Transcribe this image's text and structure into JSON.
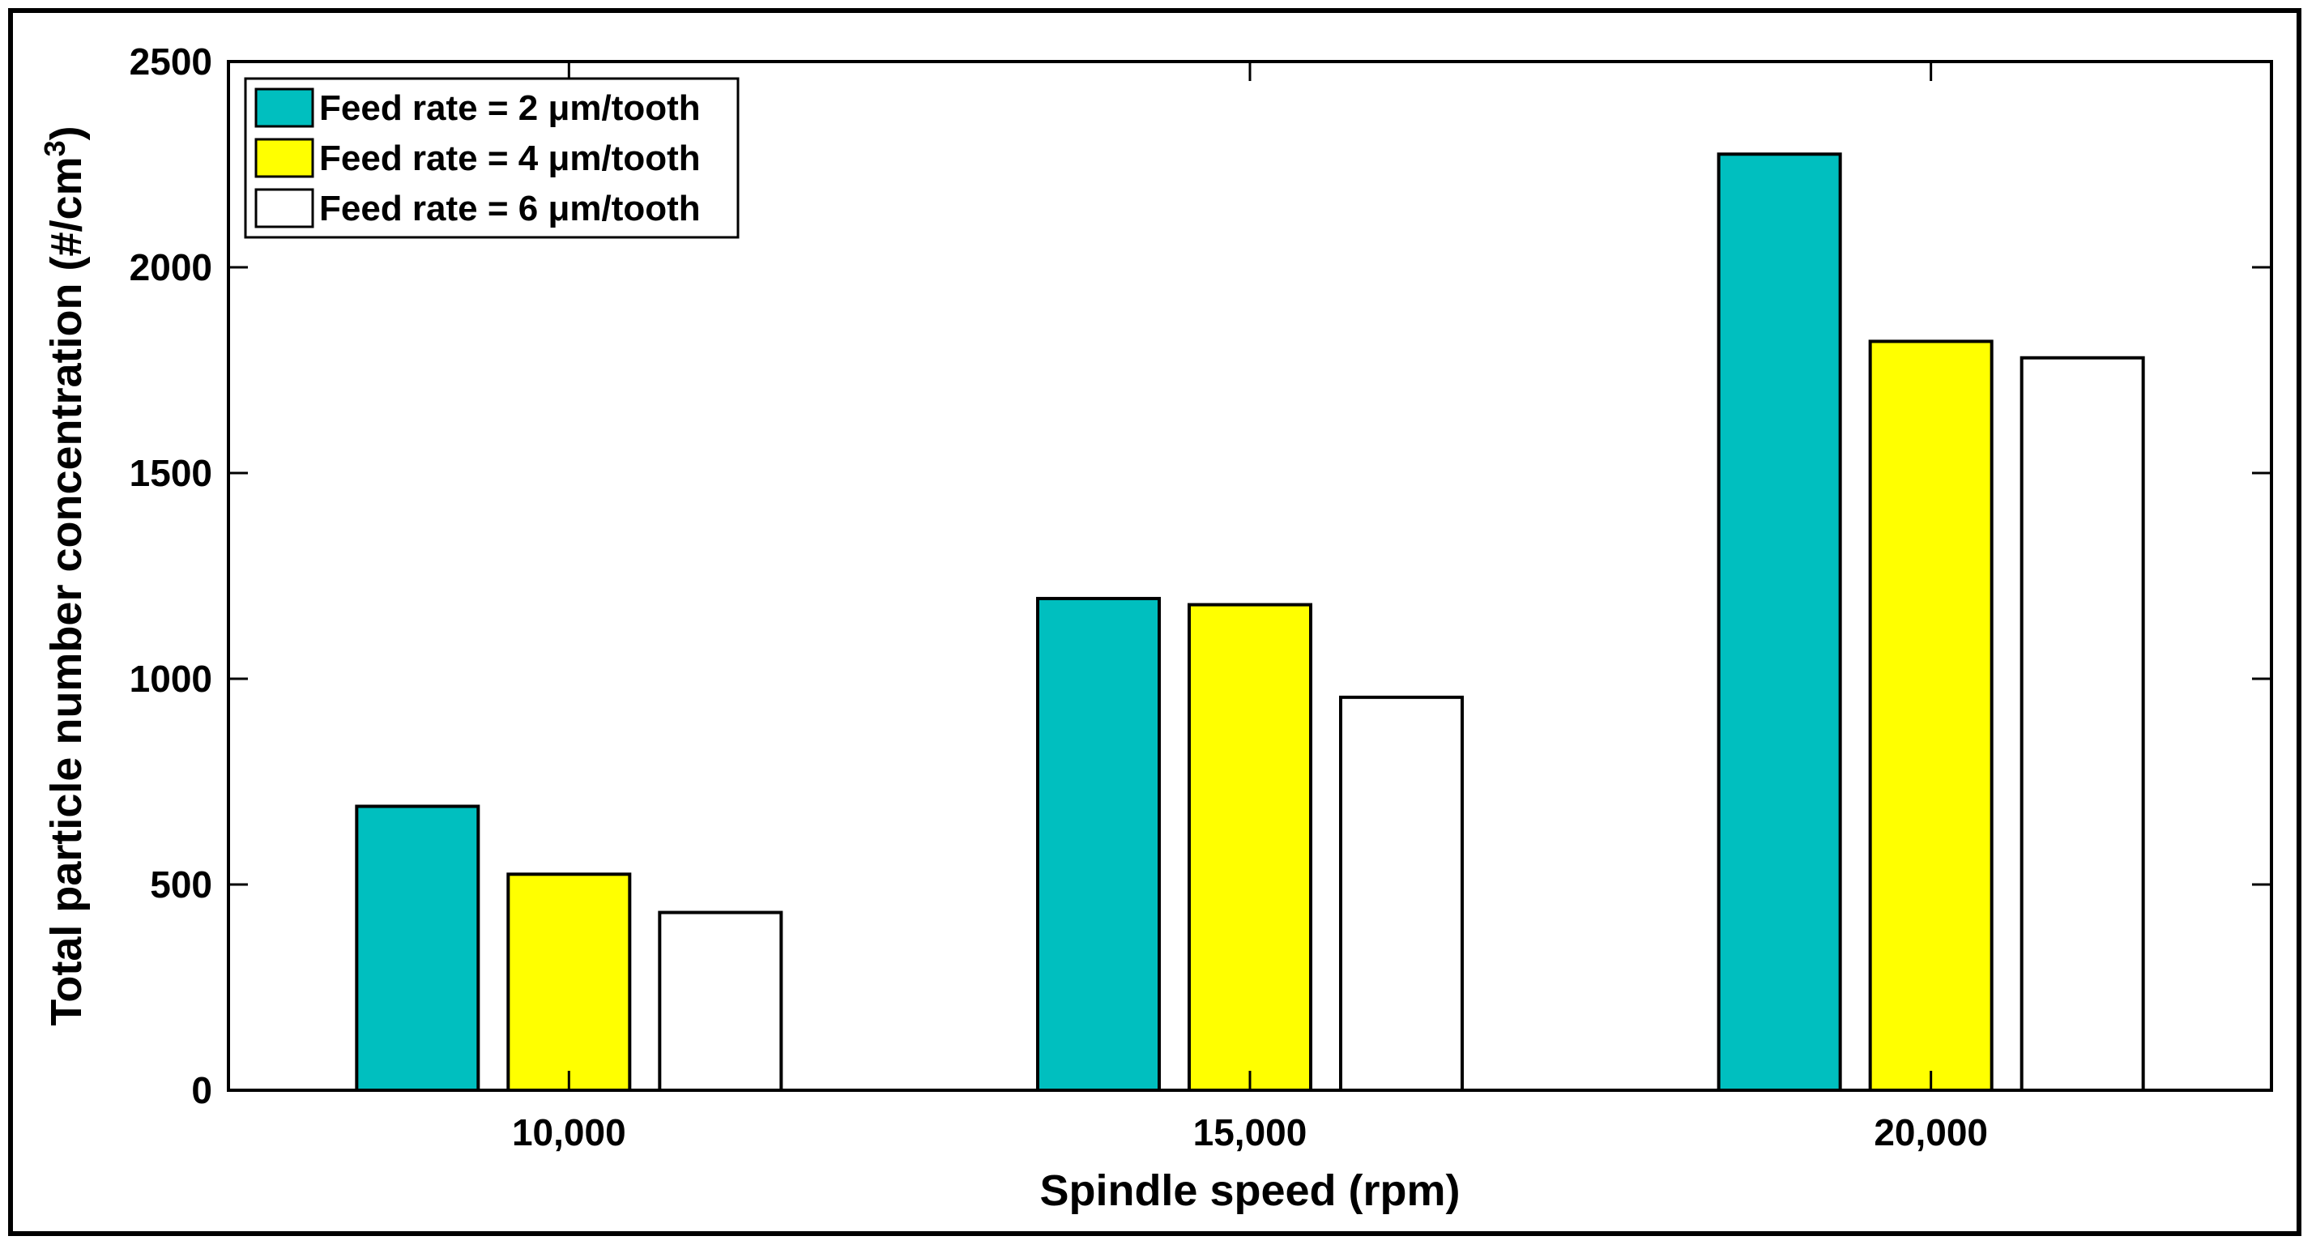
{
  "chart_data": {
    "type": "bar",
    "title": "",
    "xlabel": "Spindle speed (rpm)",
    "ylabel": "Total particle number concentration (#/cm",
    "ylabel_superscript": "3",
    "ylabel_suffix": ")",
    "categories": [
      "10,000",
      "15,000",
      "20,000"
    ],
    "ylim": [
      0,
      2500
    ],
    "yticks": [
      0,
      500,
      1000,
      1500,
      2000,
      2500
    ],
    "ytick_labels": [
      "0",
      "500",
      "1000",
      "1500",
      "2000",
      "2500"
    ],
    "grid": false,
    "legend_position": "top-left",
    "series": [
      {
        "name": "Feed rate = 2 μm/tooth",
        "color": "#00BFBF",
        "values": [
          690,
          1195,
          2275
        ]
      },
      {
        "name": "Feed rate = 4 μm/tooth",
        "color": "#FFFF00",
        "values": [
          525,
          1180,
          1820
        ]
      },
      {
        "name": "Feed rate = 6 μm/tooth",
        "color": "#FFFFFF",
        "values": [
          432,
          955,
          1780
        ]
      }
    ]
  }
}
